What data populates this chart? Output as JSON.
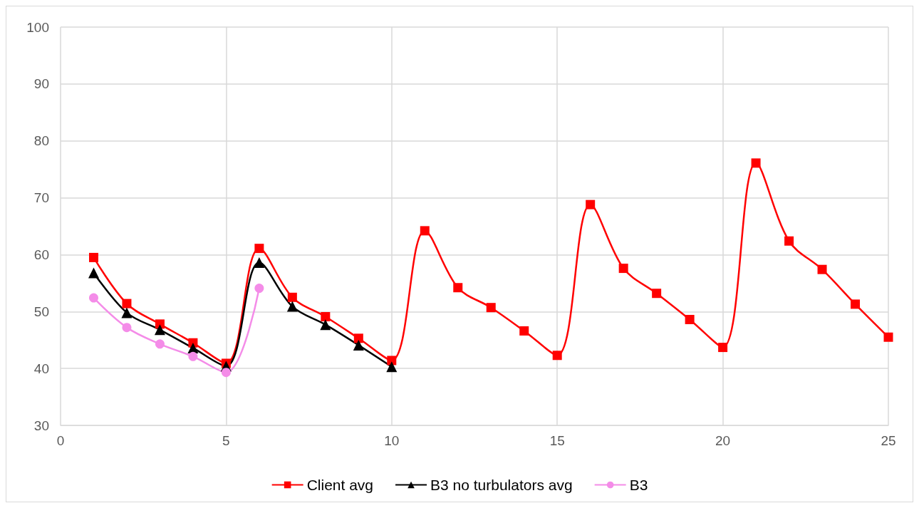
{
  "chart_data": {
    "type": "line",
    "xlim": [
      0,
      25
    ],
    "xticks": [
      0,
      5,
      10,
      15,
      20,
      25
    ],
    "ylim": [
      30,
      100
    ],
    "yticks": [
      30,
      40,
      50,
      60,
      70,
      80,
      90,
      100
    ],
    "grid": true,
    "legend": "bottom",
    "line_style": "solid",
    "series": [
      {
        "name": "Client avg",
        "color": "#ff0000",
        "marker": "square",
        "x": [
          1,
          2,
          3,
          4,
          5,
          6,
          7,
          8,
          9,
          10,
          11,
          12,
          13,
          14,
          15,
          16,
          17,
          18,
          19,
          20,
          21,
          22,
          23,
          24,
          25
        ],
        "values": [
          59.5,
          51.4,
          47.8,
          44.5,
          40.9,
          61.1,
          52.5,
          49.1,
          45.3,
          41.4,
          64.2,
          54.2,
          50.7,
          46.6,
          42.3,
          68.8,
          57.6,
          53.2,
          48.6,
          43.7,
          76.1,
          62.4,
          57.4,
          51.3,
          45.5
        ]
      },
      {
        "name": "B3 no turbulators avg",
        "color": "#000000",
        "marker": "triangle",
        "x": [
          1,
          2,
          3,
          4,
          5,
          6,
          7,
          8,
          9,
          10
        ],
        "values": [
          56.8,
          49.8,
          46.8,
          43.6,
          40.4,
          58.6,
          50.9,
          47.7,
          44.1,
          40.3
        ]
      },
      {
        "name": "B3",
        "color": "#f48ce8",
        "marker": "circle",
        "x": [
          1,
          2,
          3,
          4,
          5,
          6
        ],
        "values": [
          52.4,
          47.2,
          44.3,
          42.1,
          39.3,
          54.1
        ]
      }
    ]
  }
}
